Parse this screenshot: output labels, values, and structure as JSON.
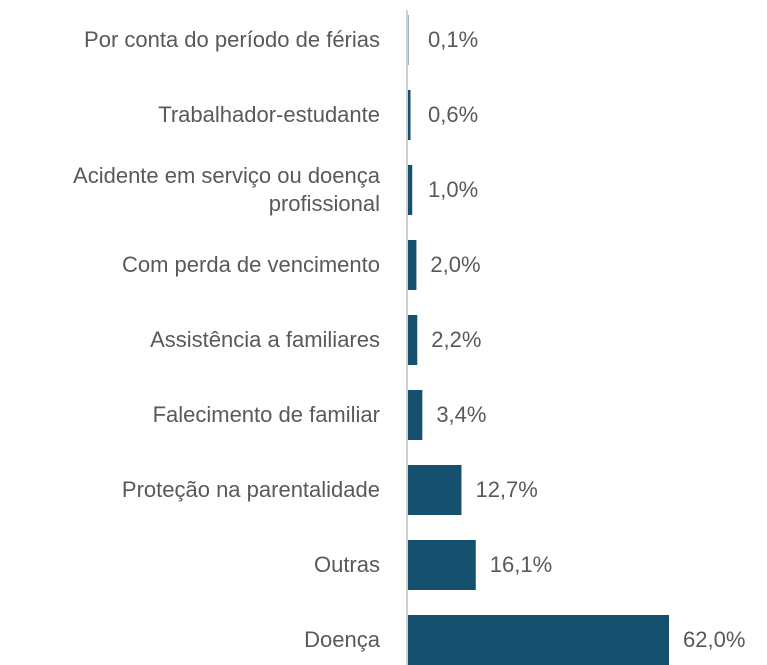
{
  "chart_data": {
    "type": "bar",
    "orientation": "horizontal",
    "categories": [
      "Por conta do período de férias",
      "Trabalhador-estudante",
      "Acidente em serviço ou doença profissional",
      "Com perda de vencimento",
      "Assistência a familiares",
      "Falecimento de familiar",
      "Proteção na parentalidade",
      "Outras",
      "Doença"
    ],
    "values": [
      0.1,
      0.6,
      1.0,
      2.0,
      2.2,
      3.4,
      12.7,
      16.1,
      62.0
    ],
    "value_labels": [
      "0,1%",
      "0,6%",
      "1,0%",
      "2,0%",
      "2,2%",
      "3,4%",
      "12,7%",
      "16,1%",
      "62,0%"
    ],
    "color": "#15506e"
  }
}
